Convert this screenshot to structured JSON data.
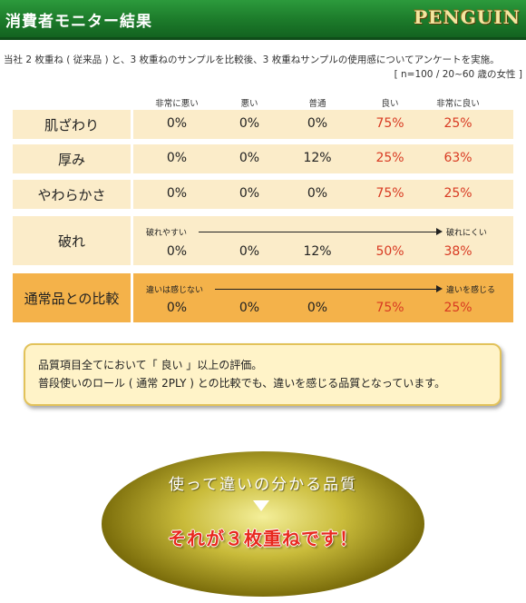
{
  "header": {
    "title": "消費者モニター結果",
    "logo_text": "PENGUIN"
  },
  "intro": {
    "text": "当社 2 枚重ね ( 従来品 ) と、3 枚重ねのサンプルを比較後、3 枚重ねサンプルの使用感についてアンケートを実施。",
    "note": "[ n=100 / 20~60 歳の女性 ]"
  },
  "columns": [
    "非常に悪い",
    "悪い",
    "普通",
    "良い",
    "非常に良い"
  ],
  "rows": [
    {
      "label": "肌ざわり",
      "values": [
        "0%",
        "0%",
        "0%",
        "75%",
        "25%"
      ]
    },
    {
      "label": "厚み",
      "values": [
        "0%",
        "0%",
        "12%",
        "25%",
        "63%"
      ]
    },
    {
      "label": "やわらかさ",
      "values": [
        "0%",
        "0%",
        "0%",
        "75%",
        "25%"
      ]
    },
    {
      "label": "破れ",
      "scale_left": "破れやすい",
      "scale_right": "破れにくい",
      "values": [
        "0%",
        "0%",
        "12%",
        "50%",
        "38%"
      ]
    },
    {
      "label": "通常品との比較",
      "scale_left": "違いは感じない",
      "scale_right": "違いを感じる",
      "values": [
        "0%",
        "0%",
        "0%",
        "75%",
        "25%"
      ]
    }
  ],
  "summary": {
    "line1": "品質項目全てにおいて「 良い 」以上の評価。",
    "line2": "普段使いのロール ( 通常 2PLY ) との比較でも、違いを感じる品質となっています。"
  },
  "oval": {
    "line1": "使って違いの分かる品質",
    "line2": "それが３枚重ねです！"
  },
  "colors": {
    "header_green": "#1c7a2a",
    "row_bg": "#fbecc9",
    "highlight_row_bg": "#f4b24a",
    "positive_red": "#d83a22"
  }
}
